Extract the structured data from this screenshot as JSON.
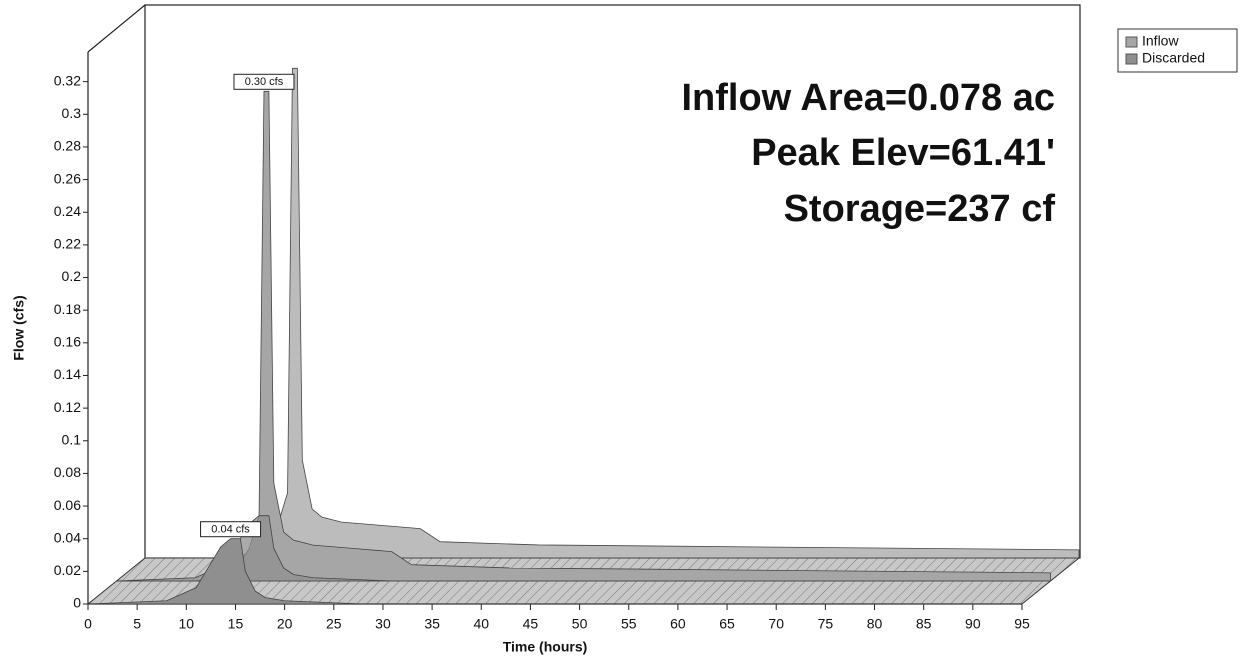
{
  "chart_data": {
    "type": "area",
    "annotations": [
      "Inflow Area=0.078 ac",
      "Peak Elev=61.41'",
      "Storage=237 cf"
    ],
    "x_label": "Time  (hours)",
    "y_label": "Flow  (cfs)",
    "x": [
      0,
      8,
      11,
      12.5,
      13.5,
      14.5,
      15,
      15.5,
      16,
      17,
      18,
      20,
      24,
      28,
      30,
      40,
      95
    ],
    "series": [
      {
        "name": "Inflow",
        "color": "#a6a6a6",
        "values": [
          0,
          0,
          0.003,
          0.01,
          0.02,
          0.04,
          0.3,
          0.3,
          0.06,
          0.03,
          0.025,
          0.022,
          0.02,
          0.018,
          0.01,
          0.008,
          0.005
        ],
        "value_labels": [
          null,
          null,
          null,
          null,
          null,
          null,
          "0.30 cfs",
          null,
          null,
          null,
          null,
          null,
          null,
          null,
          null,
          null,
          null
        ]
      },
      {
        "name": "Discarded",
        "color": "#8f8f8f",
        "values": [
          0,
          0.002,
          0.01,
          0.025,
          0.035,
          0.04,
          0.04,
          0.04,
          0.02,
          0.008,
          0.004,
          0.002,
          0.001,
          0,
          0,
          0,
          0
        ],
        "value_labels": [
          null,
          null,
          null,
          null,
          null,
          "0.04 cfs",
          null,
          null,
          null,
          null,
          null,
          null,
          null,
          null,
          null,
          null,
          null
        ]
      }
    ],
    "xlim": [
      0,
      95
    ],
    "xticks": [
      0,
      5,
      10,
      15,
      20,
      25,
      30,
      35,
      40,
      45,
      50,
      55,
      60,
      65,
      70,
      75,
      80,
      85,
      90,
      95
    ],
    "ylim": [
      0,
      0.34
    ],
    "yticks": [
      0,
      0.02,
      0.04,
      0.06,
      0.08,
      0.1,
      0.12,
      0.14,
      0.16,
      0.18,
      0.2,
      0.22,
      0.24,
      0.26,
      0.28,
      0.3,
      0.32
    ],
    "legend": "top-right"
  }
}
